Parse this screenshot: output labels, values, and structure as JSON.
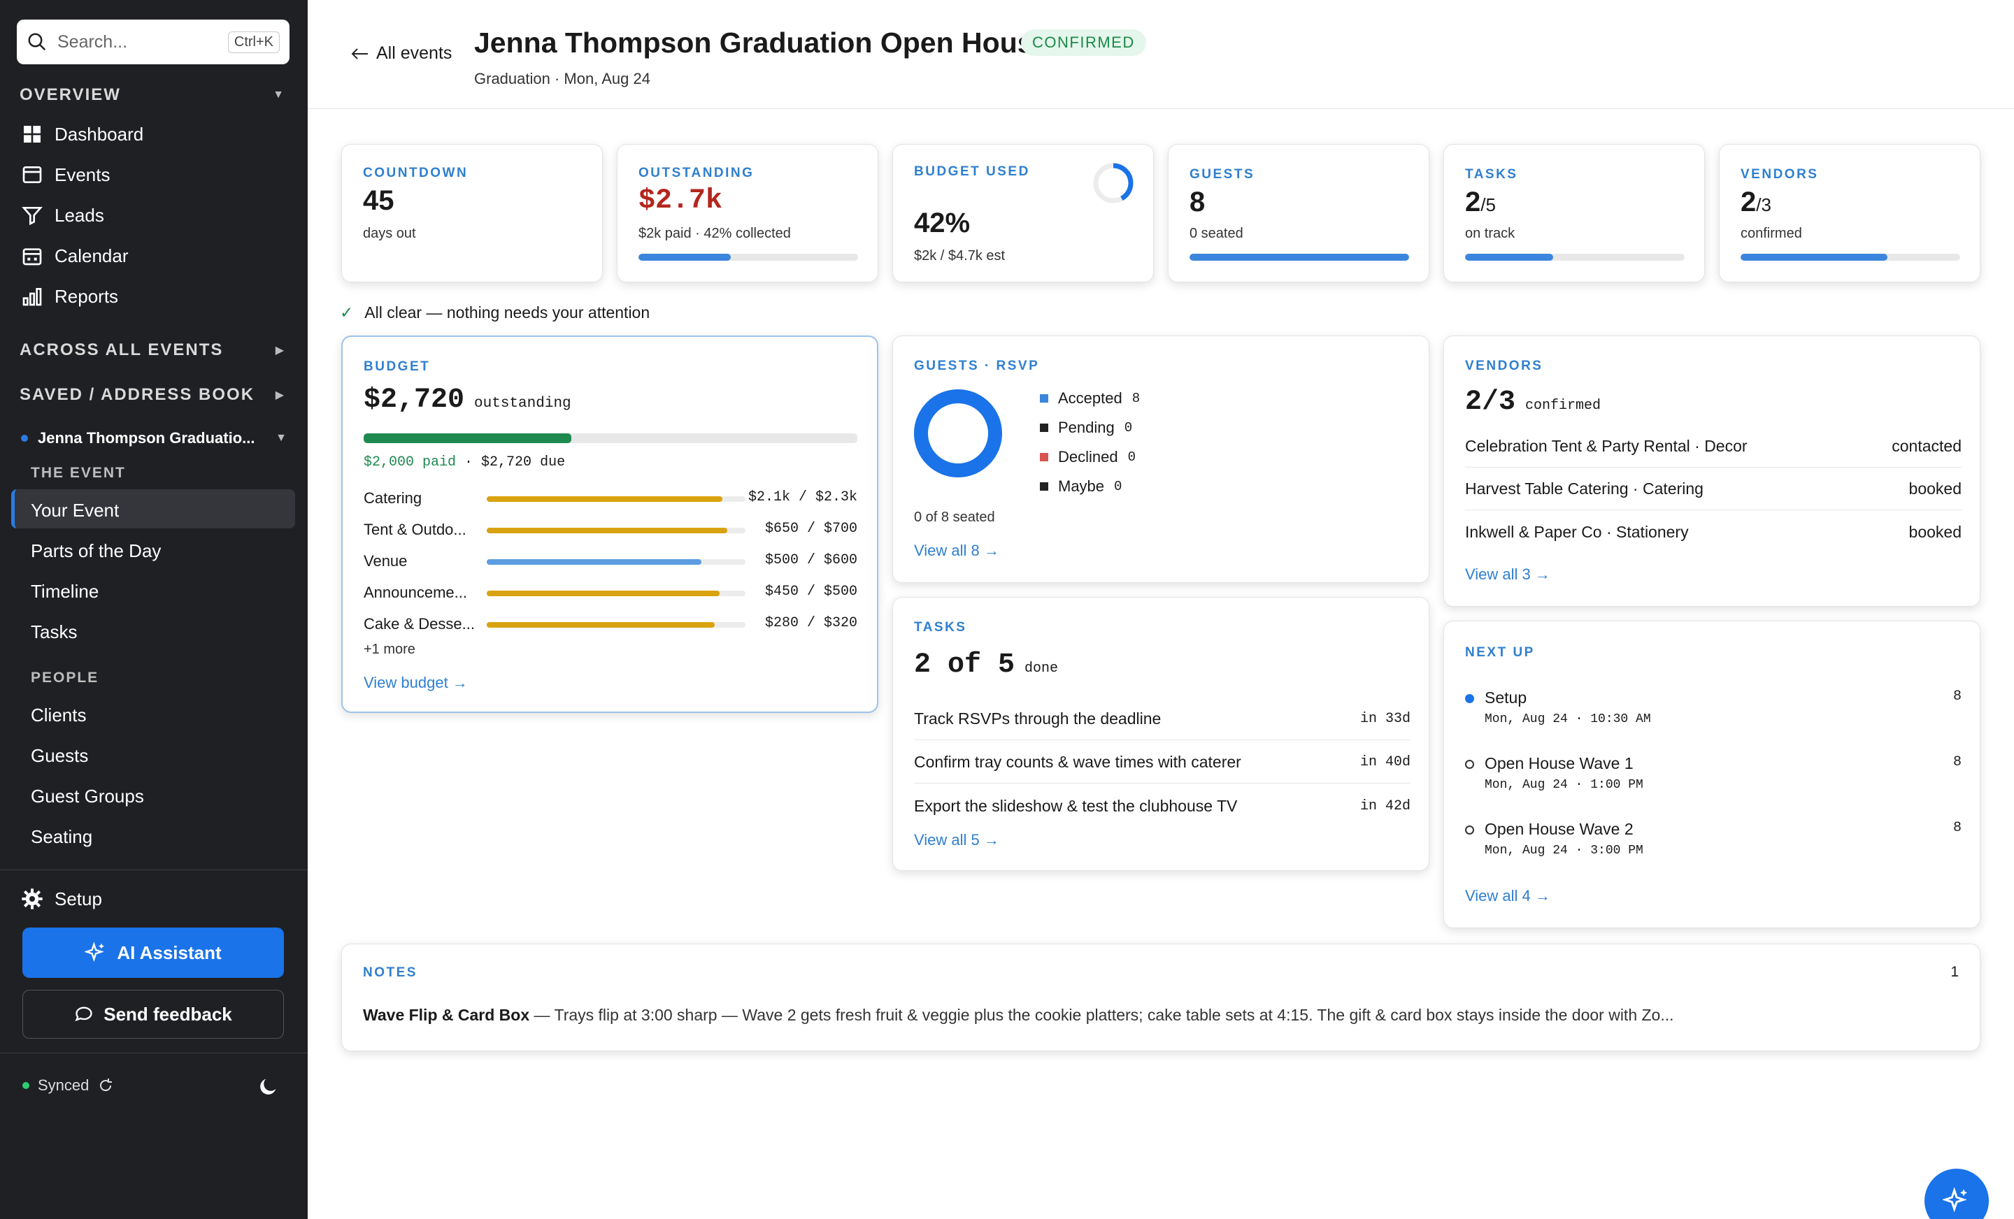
{
  "sidebar": {
    "search": {
      "placeholder": "Search...",
      "shortcut": "Ctrl+K"
    },
    "overview_label": "OVERVIEW",
    "nav": [
      {
        "label": "Dashboard",
        "icon": "dashboard-icon"
      },
      {
        "label": "Events",
        "icon": "events-icon"
      },
      {
        "label": "Leads",
        "icon": "funnel-icon"
      },
      {
        "label": "Calendar",
        "icon": "calendar-icon"
      },
      {
        "label": "Reports",
        "icon": "reports-icon"
      }
    ],
    "across_label": "ACROSS ALL EVENTS",
    "saved_label": "SAVED / ADDRESS BOOK",
    "current_event": "Jenna Thompson Graduatio...",
    "the_event_label": "THE EVENT",
    "event_items": [
      "Your Event",
      "Parts of the Day",
      "Timeline",
      "Tasks"
    ],
    "people_label": "PEOPLE",
    "people_items": [
      "Clients",
      "Guests",
      "Guest Groups",
      "Seating"
    ],
    "setup_label": "Setup",
    "ai_label": "AI Assistant",
    "feedback_label": "Send feedback",
    "synced_label": "Synced"
  },
  "header": {
    "back_label": "All events",
    "title": "Jenna Thompson Graduation Open House",
    "status": "CONFIRMED",
    "subtitle": "Graduation · Mon, Aug 24"
  },
  "stats": {
    "countdown": {
      "label": "COUNTDOWN",
      "value": "45",
      "sub": "days out"
    },
    "outstanding": {
      "label": "OUTSTANDING",
      "value": "$2.7k",
      "sub": "$2k paid · 42% collected",
      "progress": 0.42
    },
    "budget": {
      "label": "BUDGET USED",
      "value": "42%",
      "sub": "$2k / $4.7k est",
      "progress": 0.42
    },
    "guests": {
      "label": "GUESTS",
      "value": "8",
      "sub": "0 seated",
      "progress": 1.0
    },
    "tasks": {
      "label": "TASKS",
      "value": "2",
      "total": "/5",
      "sub": "on track",
      "progress": 0.4
    },
    "vendors": {
      "label": "VENDORS",
      "value": "2",
      "total": "/3",
      "sub": "confirmed",
      "progress": 0.67
    }
  },
  "all_clear": "All clear — nothing needs your attention",
  "budget_card": {
    "label": "BUDGET",
    "amount": "$2,720",
    "amount_sub": "outstanding",
    "paid_label": "$2,000 paid",
    "due_label": "· $2,720 due",
    "progress": 0.42,
    "rows": [
      {
        "name": "Catering",
        "value": "$2.1k / $2.3k",
        "progress": 0.91,
        "color": "#d9a20f"
      },
      {
        "name": "Tent & Outdo...",
        "value": "$650 / $700",
        "progress": 0.93,
        "color": "#d9a20f"
      },
      {
        "name": "Venue",
        "value": "$500 / $600",
        "progress": 0.83,
        "color": "#5b9de0"
      },
      {
        "name": "Announceme...",
        "value": "$450 / $500",
        "progress": 0.9,
        "color": "#d9a20f"
      },
      {
        "name": "Cake & Desse...",
        "value": "$280 / $320",
        "progress": 0.88,
        "color": "#d9a20f"
      }
    ],
    "more": "+1 more",
    "link": "View budget →"
  },
  "guests_card": {
    "label": "GUESTS · RSVP",
    "legend": [
      {
        "name": "Accepted",
        "count": "8",
        "color": "#3b86dc"
      },
      {
        "name": "Pending",
        "count": "0",
        "color": "#222222"
      },
      {
        "name": "Declined",
        "count": "0",
        "color": "#d9534f"
      },
      {
        "name": "Maybe",
        "count": "0",
        "color": "#222222"
      }
    ],
    "seated": "0 of 8 seated",
    "link": "View all 8 →"
  },
  "vendors_card": {
    "label": "VENDORS",
    "value": "2/3",
    "value_sub": "confirmed",
    "rows": [
      {
        "name": "Celebration Tent & Party Rental · Decor",
        "status": "contacted"
      },
      {
        "name": "Harvest Table Catering · Catering",
        "status": "booked"
      },
      {
        "name": "Inkwell & Paper Co · Stationery",
        "status": "booked"
      }
    ],
    "link": "View all 3 →"
  },
  "tasks_card": {
    "label": "TASKS",
    "value": "2 of 5",
    "value_sub": "done",
    "rows": [
      {
        "name": "Track RSVPs through the deadline",
        "due": "in 33d"
      },
      {
        "name": "Confirm tray counts & wave times with caterer",
        "due": "in 40d"
      },
      {
        "name": "Export the slideshow & test the clubhouse TV",
        "due": "in 42d"
      }
    ],
    "link": "View all 5 →"
  },
  "next_card": {
    "label": "NEXT UP",
    "items": [
      {
        "title": "Setup",
        "when": "Mon, Aug 24 · 10:30 AM",
        "count": "8"
      },
      {
        "title": "Open House Wave 1",
        "when": "Mon, Aug 24 · 1:00 PM",
        "count": "8"
      },
      {
        "title": "Open House Wave 2",
        "when": "Mon, Aug 24 · 3:00 PM",
        "count": "8"
      }
    ],
    "link": "View all 4 →"
  },
  "notes_card": {
    "label": "NOTES",
    "count": "1",
    "note_title": "Wave Flip & Card Box",
    "note_text": " — Trays flip at 3:00 sharp — Wave 2 gets fresh fruit & veggie plus the cookie platters; cake table sets at 4:15. The gift & card box stays inside the door with Zo..."
  }
}
